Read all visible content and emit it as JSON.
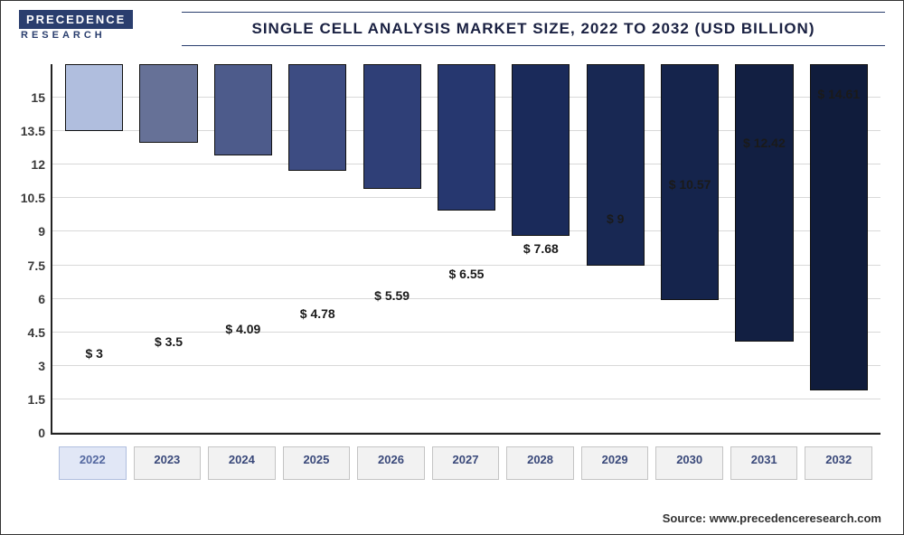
{
  "logo": {
    "top": "PRECEDENCE",
    "bottom": "RESEARCH"
  },
  "title": "SINGLE CELL ANALYSIS MARKET SIZE, 2022 TO 2032 (USD BILLION)",
  "chart": {
    "type": "bar",
    "ylim": [
      0,
      16.5
    ],
    "yticks": [
      0,
      1.5,
      3,
      4.5,
      6,
      7.5,
      9,
      10.5,
      12,
      13.5,
      15
    ],
    "categories": [
      "2022",
      "2023",
      "2024",
      "2025",
      "2026",
      "2027",
      "2028",
      "2029",
      "2030",
      "2031",
      "2032"
    ],
    "values": [
      3,
      3.5,
      4.09,
      4.78,
      5.59,
      6.55,
      7.68,
      9,
      10.57,
      12.42,
      14.61
    ],
    "value_labels": [
      "$ 3",
      "$ 3.5",
      "$ 4.09",
      "$ 4.78",
      "$ 5.59",
      "$ 6.55",
      "$ 7.68",
      "$ 9",
      "$ 10.57",
      "$ 12.42",
      "$ 14.61"
    ],
    "bar_colors": [
      "#b0bede",
      "#667197",
      "#4d5b8b",
      "#3d4c82",
      "#2f3f77",
      "#26376f",
      "#1a2a5a",
      "#182853",
      "#15244c",
      "#121f42",
      "#101c3c"
    ],
    "grid_color": "#d8d8d8",
    "bar_border": "#111111",
    "label_fontsize": 14,
    "tick_fontsize": 14
  },
  "source": "Source: www.precedenceresearch.com"
}
